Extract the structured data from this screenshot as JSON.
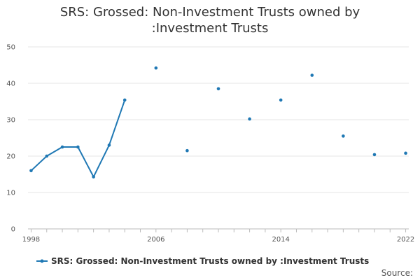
{
  "chart_data": {
    "type": "line",
    "title_line1": "SRS: Grossed: Non-Investment Trusts owned by",
    "title_line2": ":Investment Trusts",
    "xlabel": "",
    "ylabel": "",
    "xlim": [
      1997.8,
      2022.2
    ],
    "ylim": [
      0,
      50
    ],
    "y_ticks": [
      0,
      10,
      20,
      30,
      40,
      50
    ],
    "x_ticks": [
      1998,
      2006,
      2014,
      2022
    ],
    "grid": true,
    "legend_position": "bottom",
    "series": [
      {
        "name": "SRS: Grossed: Non-Investment Trusts owned by :Investment Trusts",
        "color": "#1f78b4",
        "x": [
          1998,
          1999,
          2000,
          2001,
          2002,
          2003,
          2004,
          2006,
          2008,
          2010,
          2012,
          2014,
          2016,
          2018,
          2020,
          2022
        ],
        "y": [
          16,
          20,
          22.5,
          22.5,
          14.3,
          23,
          35.4,
          44.2,
          21.5,
          38.5,
          30.2,
          35.4,
          42.2,
          25.5,
          20.4,
          20.8
        ]
      }
    ]
  },
  "source_label": "Source:"
}
